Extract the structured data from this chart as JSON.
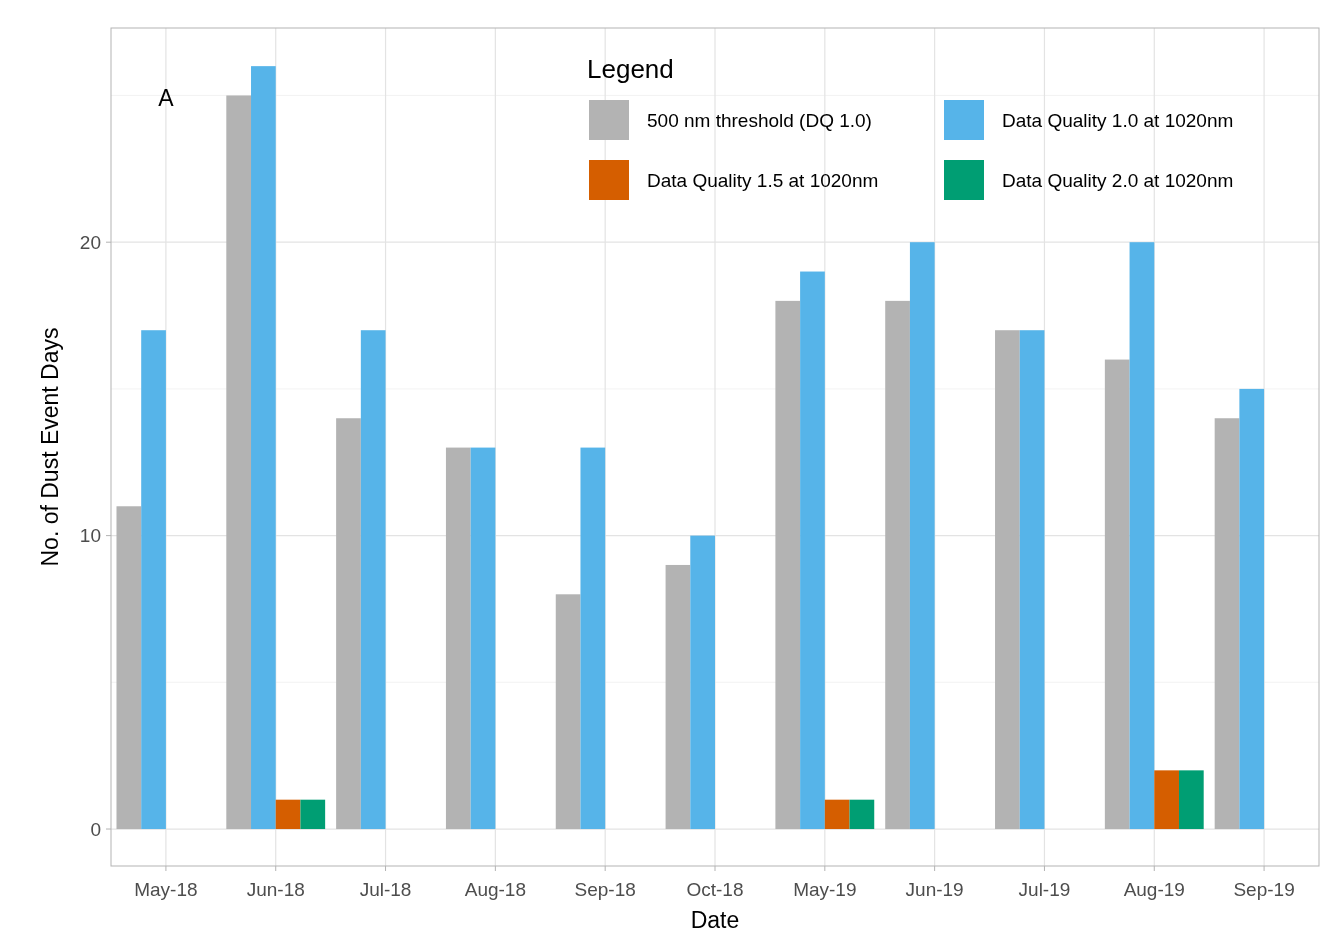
{
  "chart_data": {
    "type": "bar",
    "xlabel": "Date",
    "ylabel": "No. of Dust Event Days",
    "legend_title": "Legend",
    "annotations": [
      "A"
    ],
    "categories": [
      "May-18",
      "Jun-18",
      "Jul-18",
      "Aug-18",
      "Sep-18",
      "Oct-18",
      "May-19",
      "Jun-19",
      "Jul-19",
      "Aug-19",
      "Sep-19"
    ],
    "series": [
      {
        "name": "500 nm threshold (DQ 1.0)",
        "color": "#b3b3b3",
        "values": [
          11,
          25,
          14,
          13,
          8,
          9,
          18,
          18,
          17,
          16,
          14
        ]
      },
      {
        "name": "Data Quality 1.0 at 1020nm",
        "color": "#56b4e9",
        "values": [
          17,
          26,
          17,
          13,
          13,
          10,
          19,
          20,
          17,
          20,
          15
        ]
      },
      {
        "name": "Data Quality 1.5 at 1020nm",
        "color": "#d55e00",
        "values": [
          0,
          1,
          0,
          0,
          0,
          0,
          1,
          0,
          0,
          2,
          0
        ]
      },
      {
        "name": "Data Quality 2.0 at 1020nm",
        "color": "#009e73",
        "values": [
          0,
          1,
          0,
          0,
          0,
          0,
          1,
          0,
          0,
          2,
          0
        ]
      }
    ],
    "ylim": [
      -1.26,
      27.3
    ],
    "yticks": [
      0,
      {
        "value": 5,
        "label": null
      },
      10,
      {
        "value": 15,
        "label": null
      },
      20,
      {
        "value": 25,
        "label": null
      }
    ],
    "grid": true,
    "legend": "top right"
  }
}
